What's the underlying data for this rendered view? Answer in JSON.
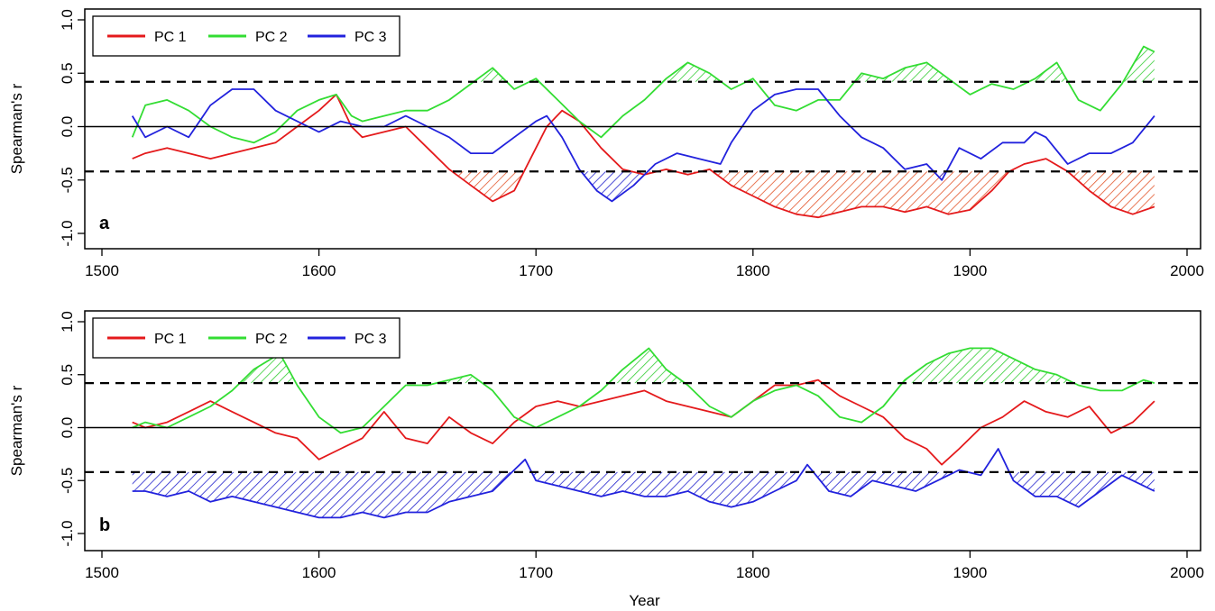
{
  "chart_data": [
    {
      "type": "line",
      "panel_label": "a",
      "ylabel": "Spearman's r",
      "xlabel": "",
      "xlim": [
        1500,
        2000
      ],
      "ylim": [
        -1.0,
        1.0
      ],
      "x_ticks": [
        "1500",
        "1600",
        "1700",
        "1800",
        "1900",
        "2000"
      ],
      "y_ticks": [
        "-1.0",
        "-0.5",
        "0.0",
        "0.5",
        "1.0"
      ],
      "threshold": 0.42,
      "legend_placement": "top-left",
      "series": [
        {
          "name": "PC 1",
          "color": "#e41a1c",
          "x": [
            1514,
            1520,
            1530,
            1540,
            1550,
            1560,
            1570,
            1580,
            1590,
            1600,
            1608,
            1615,
            1620,
            1630,
            1640,
            1650,
            1660,
            1670,
            1680,
            1690,
            1700,
            1705,
            1712,
            1720,
            1730,
            1740,
            1750,
            1760,
            1770,
            1780,
            1790,
            1800,
            1810,
            1820,
            1830,
            1840,
            1850,
            1860,
            1870,
            1880,
            1890,
            1900,
            1910,
            1918,
            1925,
            1935,
            1945,
            1955,
            1965,
            1975,
            1985
          ],
          "y": [
            -0.3,
            -0.25,
            -0.2,
            -0.25,
            -0.3,
            -0.25,
            -0.2,
            -0.15,
            0.0,
            0.15,
            0.3,
            0.0,
            -0.1,
            -0.05,
            0.0,
            -0.2,
            -0.4,
            -0.55,
            -0.7,
            -0.6,
            -0.2,
            0.0,
            0.15,
            0.05,
            -0.2,
            -0.4,
            -0.45,
            -0.4,
            -0.45,
            -0.4,
            -0.55,
            -0.65,
            -0.75,
            -0.82,
            -0.85,
            -0.8,
            -0.75,
            -0.75,
            -0.8,
            -0.75,
            -0.82,
            -0.78,
            -0.6,
            -0.42,
            -0.35,
            -0.3,
            -0.42,
            -0.6,
            -0.75,
            -0.82,
            -0.75
          ]
        },
        {
          "name": "PC 2",
          "color": "#33dd33",
          "x": [
            1514,
            1520,
            1530,
            1540,
            1550,
            1560,
            1570,
            1580,
            1590,
            1600,
            1608,
            1615,
            1620,
            1630,
            1640,
            1650,
            1660,
            1670,
            1680,
            1690,
            1700,
            1710,
            1720,
            1730,
            1740,
            1750,
            1760,
            1770,
            1780,
            1790,
            1800,
            1810,
            1820,
            1830,
            1840,
            1850,
            1860,
            1870,
            1880,
            1890,
            1900,
            1910,
            1920,
            1930,
            1940,
            1950,
            1960,
            1970,
            1980,
            1985
          ],
          "y": [
            -0.1,
            0.2,
            0.25,
            0.15,
            0.0,
            -0.1,
            -0.15,
            -0.05,
            0.15,
            0.25,
            0.3,
            0.1,
            0.05,
            0.1,
            0.15,
            0.15,
            0.25,
            0.4,
            0.55,
            0.35,
            0.45,
            0.25,
            0.05,
            -0.1,
            0.1,
            0.25,
            0.45,
            0.6,
            0.5,
            0.35,
            0.45,
            0.2,
            0.15,
            0.25,
            0.25,
            0.5,
            0.45,
            0.55,
            0.6,
            0.45,
            0.3,
            0.4,
            0.35,
            0.45,
            0.6,
            0.25,
            0.15,
            0.4,
            0.75,
            0.7
          ]
        },
        {
          "name": "PC 3",
          "color": "#2222dd",
          "x": [
            1514,
            1520,
            1530,
            1540,
            1550,
            1560,
            1570,
            1580,
            1590,
            1600,
            1610,
            1620,
            1630,
            1640,
            1650,
            1660,
            1670,
            1680,
            1690,
            1700,
            1705,
            1712,
            1720,
            1728,
            1735,
            1745,
            1755,
            1765,
            1775,
            1785,
            1790,
            1800,
            1810,
            1820,
            1830,
            1840,
            1850,
            1860,
            1865,
            1870,
            1880,
            1887,
            1895,
            1905,
            1915,
            1925,
            1930,
            1935,
            1945,
            1955,
            1965,
            1975,
            1985
          ],
          "y": [
            0.1,
            -0.1,
            0.0,
            -0.1,
            0.2,
            0.35,
            0.35,
            0.15,
            0.05,
            -0.05,
            0.05,
            0.0,
            0.0,
            0.1,
            0.0,
            -0.1,
            -0.25,
            -0.25,
            -0.1,
            0.05,
            0.1,
            -0.1,
            -0.4,
            -0.6,
            -0.7,
            -0.55,
            -0.35,
            -0.25,
            -0.3,
            -0.35,
            -0.15,
            0.15,
            0.3,
            0.35,
            0.35,
            0.1,
            -0.1,
            -0.2,
            -0.3,
            -0.4,
            -0.35,
            -0.5,
            -0.2,
            -0.3,
            -0.15,
            -0.15,
            -0.05,
            -0.1,
            -0.35,
            -0.25,
            -0.25,
            -0.15,
            0.1
          ]
        }
      ]
    },
    {
      "type": "line",
      "panel_label": "b",
      "ylabel": "Spearman's r",
      "xlabel": "Year",
      "xlim": [
        1500,
        2000
      ],
      "ylim": [
        -1.0,
        1.0
      ],
      "x_ticks": [
        "1500",
        "1600",
        "1700",
        "1800",
        "1900",
        "2000"
      ],
      "y_ticks": [
        "-1.0",
        "-0.5",
        "0.0",
        "0.5",
        "1.0"
      ],
      "threshold": 0.42,
      "legend_placement": "top-left",
      "series": [
        {
          "name": "PC 1",
          "color": "#e41a1c",
          "x": [
            1514,
            1520,
            1530,
            1540,
            1550,
            1560,
            1570,
            1580,
            1590,
            1600,
            1610,
            1620,
            1630,
            1640,
            1650,
            1660,
            1670,
            1680,
            1690,
            1700,
            1710,
            1720,
            1730,
            1740,
            1750,
            1760,
            1770,
            1780,
            1790,
            1800,
            1810,
            1820,
            1830,
            1840,
            1850,
            1860,
            1870,
            1880,
            1887,
            1895,
            1905,
            1915,
            1925,
            1935,
            1945,
            1955,
            1965,
            1975,
            1985
          ],
          "y": [
            0.05,
            0.0,
            0.05,
            0.15,
            0.25,
            0.15,
            0.05,
            -0.05,
            -0.1,
            -0.3,
            -0.2,
            -0.1,
            0.15,
            -0.1,
            -0.15,
            0.1,
            -0.05,
            -0.15,
            0.05,
            0.2,
            0.25,
            0.2,
            0.25,
            0.3,
            0.35,
            0.25,
            0.2,
            0.15,
            0.1,
            0.25,
            0.4,
            0.4,
            0.45,
            0.3,
            0.2,
            0.1,
            -0.1,
            -0.2,
            -0.35,
            -0.2,
            0.0,
            0.1,
            0.25,
            0.15,
            0.1,
            0.2,
            -0.05,
            0.05,
            0.25
          ]
        },
        {
          "name": "PC 2",
          "color": "#33dd33",
          "x": [
            1514,
            1520,
            1530,
            1540,
            1550,
            1560,
            1570,
            1582,
            1590,
            1600,
            1610,
            1620,
            1630,
            1640,
            1650,
            1660,
            1670,
            1680,
            1690,
            1700,
            1710,
            1720,
            1730,
            1740,
            1752,
            1760,
            1770,
            1780,
            1790,
            1800,
            1810,
            1820,
            1830,
            1840,
            1850,
            1860,
            1870,
            1880,
            1890,
            1900,
            1910,
            1920,
            1930,
            1940,
            1950,
            1960,
            1970,
            1980,
            1985
          ],
          "y": [
            0.0,
            0.05,
            0.0,
            0.1,
            0.2,
            0.35,
            0.55,
            0.7,
            0.4,
            0.1,
            -0.05,
            0.0,
            0.2,
            0.4,
            0.4,
            0.45,
            0.5,
            0.35,
            0.1,
            0.0,
            0.1,
            0.2,
            0.35,
            0.55,
            0.75,
            0.55,
            0.4,
            0.2,
            0.1,
            0.25,
            0.35,
            0.4,
            0.3,
            0.1,
            0.05,
            0.2,
            0.45,
            0.6,
            0.7,
            0.75,
            0.75,
            0.65,
            0.55,
            0.5,
            0.4,
            0.35,
            0.35,
            0.45,
            0.42
          ]
        },
        {
          "name": "PC 3",
          "color": "#2222dd",
          "x": [
            1514,
            1520,
            1530,
            1540,
            1550,
            1560,
            1570,
            1580,
            1590,
            1600,
            1610,
            1620,
            1630,
            1640,
            1650,
            1660,
            1670,
            1680,
            1690,
            1695,
            1700,
            1710,
            1720,
            1730,
            1740,
            1750,
            1760,
            1770,
            1780,
            1790,
            1800,
            1810,
            1820,
            1825,
            1835,
            1845,
            1855,
            1865,
            1875,
            1885,
            1895,
            1905,
            1913,
            1920,
            1930,
            1940,
            1950,
            1960,
            1970,
            1980,
            1985
          ],
          "y": [
            -0.6,
            -0.6,
            -0.65,
            -0.6,
            -0.7,
            -0.65,
            -0.7,
            -0.75,
            -0.8,
            -0.85,
            -0.85,
            -0.8,
            -0.85,
            -0.8,
            -0.8,
            -0.7,
            -0.65,
            -0.6,
            -0.4,
            -0.3,
            -0.5,
            -0.55,
            -0.6,
            -0.65,
            -0.6,
            -0.65,
            -0.65,
            -0.6,
            -0.7,
            -0.75,
            -0.7,
            -0.6,
            -0.5,
            -0.35,
            -0.6,
            -0.65,
            -0.5,
            -0.55,
            -0.6,
            -0.5,
            -0.4,
            -0.45,
            -0.2,
            -0.5,
            -0.65,
            -0.65,
            -0.75,
            -0.6,
            -0.45,
            -0.55,
            -0.6
          ]
        }
      ]
    }
  ]
}
